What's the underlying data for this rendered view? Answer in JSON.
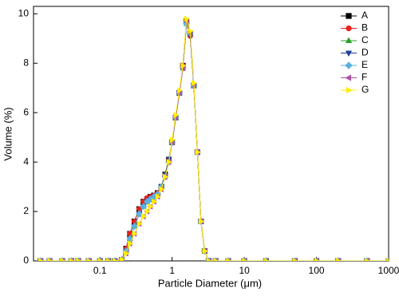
{
  "chart_data": {
    "type": "line",
    "x_label": "Particle Diameter (μm)",
    "y_label": "Volume (%)",
    "log_x": true,
    "legend": "top-right",
    "xlim": [
      0.012,
      1000
    ],
    "xticks": [
      0.1,
      1,
      10,
      100,
      1000
    ],
    "ylim": [
      0,
      10.3
    ],
    "yticks": [
      0,
      2,
      4,
      6,
      8,
      10
    ],
    "x": [
      0.015,
      0.02,
      0.03,
      0.04,
      0.05,
      0.07,
      0.1,
      0.13,
      0.16,
      0.2,
      0.23,
      0.26,
      0.3,
      0.35,
      0.4,
      0.45,
      0.5,
      0.56,
      0.63,
      0.71,
      0.8,
      0.9,
      1.0,
      1.12,
      1.26,
      1.41,
      1.58,
      1.78,
      2.0,
      2.24,
      2.51,
      2.82,
      3.2,
      4,
      6,
      10,
      20,
      50,
      100,
      200,
      500,
      1000
    ],
    "series": [
      {
        "name": "A",
        "color": "#000000",
        "marker": "square",
        "values": [
          0,
          0,
          0,
          0,
          0,
          0,
          0,
          0,
          0,
          0.05,
          0.5,
          1.1,
          1.6,
          2.1,
          2.4,
          2.5,
          2.6,
          2.65,
          2.75,
          3.0,
          3.5,
          4.1,
          4.8,
          5.8,
          6.8,
          7.9,
          9.7,
          9.2,
          7.1,
          4.4,
          1.6,
          0.4,
          0,
          0,
          0,
          0,
          0,
          0,
          0,
          0,
          0,
          0
        ]
      },
      {
        "name": "B",
        "color": "#e8201c",
        "marker": "circle",
        "values": [
          0,
          0,
          0,
          0,
          0,
          0,
          0,
          0,
          0,
          0.05,
          0.5,
          1.1,
          1.6,
          2.1,
          2.4,
          2.55,
          2.6,
          2.65,
          2.75,
          3.0,
          3.5,
          4.1,
          4.8,
          5.8,
          6.8,
          7.9,
          9.7,
          9.1,
          7.1,
          4.4,
          1.6,
          0.4,
          0,
          0,
          0,
          0,
          0,
          0,
          0,
          0,
          0,
          0
        ]
      },
      {
        "name": "C",
        "color": "#2ca02c",
        "marker": "triangle-up",
        "values": [
          0,
          0,
          0,
          0,
          0,
          0,
          0,
          0,
          0,
          0.05,
          0.4,
          0.9,
          1.4,
          1.9,
          2.2,
          2.4,
          2.5,
          2.6,
          2.7,
          3.0,
          3.5,
          4.1,
          4.8,
          5.8,
          6.8,
          7.8,
          9.6,
          9.2,
          7.1,
          4.4,
          1.6,
          0.4,
          0,
          0,
          0,
          0,
          0,
          0,
          0,
          0,
          0,
          0
        ]
      },
      {
        "name": "D",
        "color": "#1f3f99",
        "marker": "triangle-down",
        "values": [
          0,
          0,
          0,
          0,
          0,
          0,
          0,
          0,
          0,
          0.05,
          0.4,
          0.9,
          1.4,
          1.9,
          2.2,
          2.4,
          2.5,
          2.6,
          2.7,
          3.0,
          3.5,
          4.1,
          4.8,
          5.8,
          6.8,
          7.8,
          9.6,
          9.1,
          7.1,
          4.4,
          1.6,
          0.4,
          0,
          0,
          0,
          0,
          0,
          0,
          0,
          0,
          0,
          0
        ]
      },
      {
        "name": "E",
        "color": "#5ab0e0",
        "marker": "diamond",
        "values": [
          0,
          0,
          0,
          0,
          0,
          0,
          0,
          0,
          0,
          0.05,
          0.4,
          0.9,
          1.4,
          1.9,
          2.2,
          2.4,
          2.5,
          2.6,
          2.7,
          3.0,
          3.4,
          4.0,
          4.8,
          5.8,
          6.8,
          7.8,
          9.6,
          9.2,
          7.1,
          4.4,
          1.6,
          0.4,
          0,
          0,
          0,
          0,
          0,
          0,
          0,
          0,
          0,
          0
        ]
      },
      {
        "name": "F",
        "color": "#b04fa8",
        "marker": "triangle-left",
        "values": [
          0,
          0,
          0,
          0,
          0,
          0,
          0,
          0,
          0,
          0.05,
          0.3,
          0.7,
          1.1,
          1.5,
          1.8,
          2.0,
          2.2,
          2.4,
          2.6,
          2.9,
          3.4,
          4.0,
          4.8,
          5.8,
          6.8,
          7.8,
          9.7,
          9.2,
          7.1,
          4.4,
          1.6,
          0.4,
          0,
          0,
          0,
          0,
          0,
          0,
          0,
          0,
          0,
          0
        ]
      },
      {
        "name": "G",
        "color": "#ffee00",
        "marker": "triangle-right",
        "values": [
          0,
          0,
          0,
          0,
          0,
          0,
          0,
          0,
          0,
          0.05,
          0.3,
          0.7,
          1.1,
          1.5,
          1.8,
          2.0,
          2.2,
          2.4,
          2.6,
          2.9,
          3.4,
          4.0,
          4.9,
          5.9,
          6.9,
          7.9,
          9.8,
          9.3,
          7.2,
          4.4,
          1.6,
          0.4,
          0,
          0,
          0,
          0,
          0,
          0,
          0,
          0,
          0,
          0
        ]
      }
    ]
  }
}
